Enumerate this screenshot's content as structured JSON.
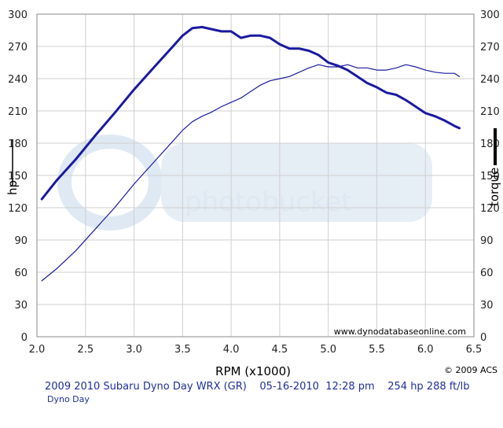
{
  "chart_data": {
    "type": "line",
    "xlabel": "RPM (x1000)",
    "ylabel_left": "hp",
    "ylabel_right": "torque",
    "xlim": [
      2.0,
      6.5
    ],
    "ylim": [
      0,
      300
    ],
    "x_ticks": [
      "2.0",
      "2.5",
      "3.0",
      "3.5",
      "4.0",
      "4.5",
      "5.0",
      "5.5",
      "6.0",
      "6.5"
    ],
    "y_ticks": [
      "0",
      "30",
      "60",
      "90",
      "120",
      "150",
      "180",
      "210",
      "240",
      "270",
      "300"
    ],
    "grid": true,
    "series": [
      {
        "name": "torque",
        "color": "#1a1aa0",
        "x": [
          2.05,
          2.2,
          2.4,
          2.6,
          2.8,
          3.0,
          3.2,
          3.4,
          3.5,
          3.6,
          3.7,
          3.8,
          3.9,
          4.0,
          4.1,
          4.2,
          4.3,
          4.4,
          4.5,
          4.6,
          4.7,
          4.8,
          4.9,
          5.0,
          5.1,
          5.2,
          5.3,
          5.4,
          5.5,
          5.6,
          5.7,
          5.8,
          5.9,
          6.0,
          6.1,
          6.2,
          6.3,
          6.35
        ],
        "y": [
          128,
          145,
          165,
          187,
          208,
          230,
          250,
          270,
          280,
          287,
          288,
          286,
          284,
          284,
          278,
          280,
          280,
          278,
          272,
          268,
          268,
          266,
          262,
          255,
          252,
          248,
          242,
          236,
          232,
          227,
          225,
          220,
          214,
          208,
          205,
          201,
          196,
          194
        ]
      },
      {
        "name": "hp",
        "color": "#1a1aa0",
        "x": [
          2.05,
          2.2,
          2.4,
          2.6,
          2.8,
          3.0,
          3.2,
          3.4,
          3.5,
          3.6,
          3.7,
          3.8,
          3.9,
          4.0,
          4.1,
          4.2,
          4.3,
          4.4,
          4.5,
          4.6,
          4.7,
          4.8,
          4.9,
          5.0,
          5.1,
          5.2,
          5.3,
          5.4,
          5.5,
          5.6,
          5.7,
          5.8,
          5.9,
          6.0,
          6.1,
          6.2,
          6.3,
          6.35
        ],
        "y": [
          52,
          63,
          80,
          100,
          120,
          142,
          162,
          182,
          192,
          200,
          205,
          209,
          214,
          218,
          222,
          228,
          234,
          238,
          240,
          242,
          246,
          250,
          253,
          251,
          251,
          253,
          250,
          250,
          248,
          248,
          250,
          253,
          251,
          248,
          246,
          245,
          245,
          242
        ]
      }
    ],
    "watermark": "photobucket",
    "annotation": "www.dynodatabaseonline.com",
    "copyright": "© 2009 ACS"
  },
  "caption": {
    "main": "2009 2010 Subaru Dyno Day WRX (GR)    05-16-2010  12:28 pm    254 hp 288 ft/lb",
    "sub": "Dyno Day"
  }
}
